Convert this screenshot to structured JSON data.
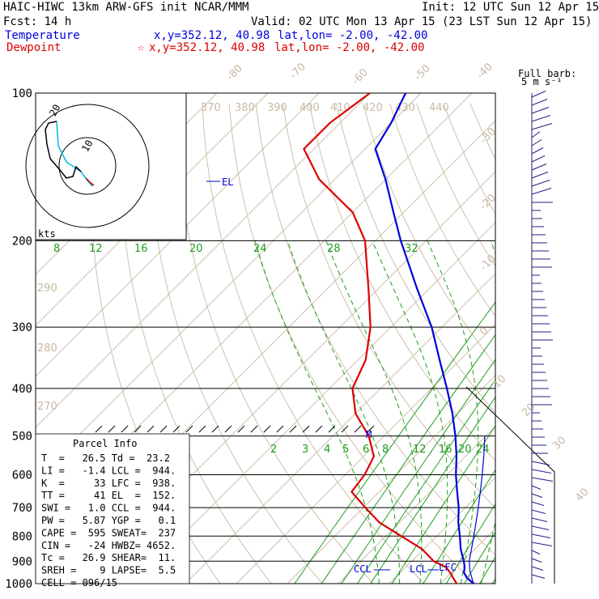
{
  "header": {
    "title": "HAIC-HIWC 13km ARW-GFS init   NCAR/MMM",
    "init": "Init: 12 UTC Sun 12 Apr 15",
    "fcst": "Fcst:   14 h",
    "valid": "Valid: 02 UTC Mon 13 Apr 15 (23 LST Sun 12 Apr 15)",
    "temp_label": "Temperature",
    "temp_xy": "x,y=352.12, 40.98",
    "temp_latlon": "lat,lon= -2.00, -42.00",
    "dew_label": "Dewpoint",
    "dew_star": "☆",
    "dew_xy": "x,y=352.12, 40.98",
    "dew_latlon": "lat,lon= -2.00, -42.00"
  },
  "barb_legend": {
    "line1": "Full barb:",
    "line2": "5 m s⁻¹"
  },
  "hodograph": {
    "units": "kts",
    "ring1": "10",
    "ring2": "20"
  },
  "parcel_info": {
    "title": "Parcel Info",
    "rows": [
      "T  =   26.5 Td =  23.2",
      "LI =   -1.4 LCL =  944.",
      "K  =     33 LFC =  938.",
      "TT =     41 EL  =  152.",
      "SWI =   1.0 CCL =  944.",
      "PW =   5.87 YGP =   0.1",
      "CAPE =  595 SWEAT=  237",
      "CIN =   -24 HWBZ= 4652.",
      "Tc =   26.9 SHEAR=  11.",
      "SREH =    9 LAPSE=  5.5",
      "CELL = 096/15"
    ]
  },
  "markers": {
    "el": "EL",
    "ccl": "CCL",
    "lcl": "LCL",
    "lfc": "LFC",
    "m": "M"
  },
  "colors": {
    "temperature": "#0000dd",
    "dewpoint": "#dd0000",
    "isotherm": "#c8b9a2",
    "mixing": "#1e9e1e",
    "barb": "#202080"
  },
  "chart_data": {
    "type": "line",
    "title": "HAIC-HIWC 13km ARW-GFS init",
    "ylabel": "",
    "xlabel": "",
    "y_scale": "log-pressure",
    "ylim": [
      1000,
      100
    ],
    "pressure_ticks": [
      "100",
      "200",
      "300",
      "400",
      "500",
      "600",
      "700",
      "800",
      "900",
      "1000"
    ],
    "isotherm_labels": [
      "-80",
      "-70",
      "-60",
      "-50",
      "-40",
      "-30",
      "-20",
      "-10",
      "0",
      "10",
      "20",
      "30",
      "40"
    ],
    "theta_labels": [
      "370",
      "380",
      "390",
      "400",
      "410",
      "420",
      "430",
      "440",
      "290",
      "280",
      "270"
    ],
    "mixing_ratio_top_labels": [
      "8",
      "12",
      "16",
      "20",
      "24",
      "28",
      "32"
    ],
    "mixing_ratio_mid_labels": [
      "2",
      "3",
      "4",
      "5",
      "6",
      "8",
      "12",
      "16",
      "20",
      "24"
    ],
    "series": [
      {
        "name": "Temperature",
        "pressure": [
          1000,
          975,
          950,
          925,
          900,
          850,
          800,
          750,
          700,
          650,
          600,
          550,
          500,
          450,
          400,
          350,
          300,
          250,
          200,
          175,
          150,
          130,
          115,
          100
        ],
        "values": [
          26.5,
          24.2,
          22.5,
          21.5,
          20.2,
          17.2,
          14.5,
          11.5,
          8.7,
          5.3,
          1.7,
          -1.8,
          -6.0,
          -11.0,
          -17.0,
          -24.0,
          -32.0,
          -42.5,
          -55.0,
          -62.0,
          -70.0,
          -78.0,
          -80.0,
          -83.0
        ]
      },
      {
        "name": "Dewpoint",
        "pressure": [
          1000,
          975,
          950,
          925,
          900,
          850,
          800,
          750,
          700,
          650,
          600,
          550,
          500,
          450,
          400,
          350,
          300,
          250,
          200,
          175,
          150,
          130,
          115,
          100
        ],
        "values": [
          23.2,
          21.5,
          19.8,
          17.8,
          14.3,
          9.6,
          3.0,
          -4.0,
          -9.6,
          -15.4,
          -16.2,
          -18.0,
          -23.0,
          -30.0,
          -35.5,
          -38.5,
          -44.0,
          -52.0,
          -62.0,
          -70.0,
          -83.0,
          -92.0,
          -92.0,
          -90.0
        ]
      }
    ]
  }
}
